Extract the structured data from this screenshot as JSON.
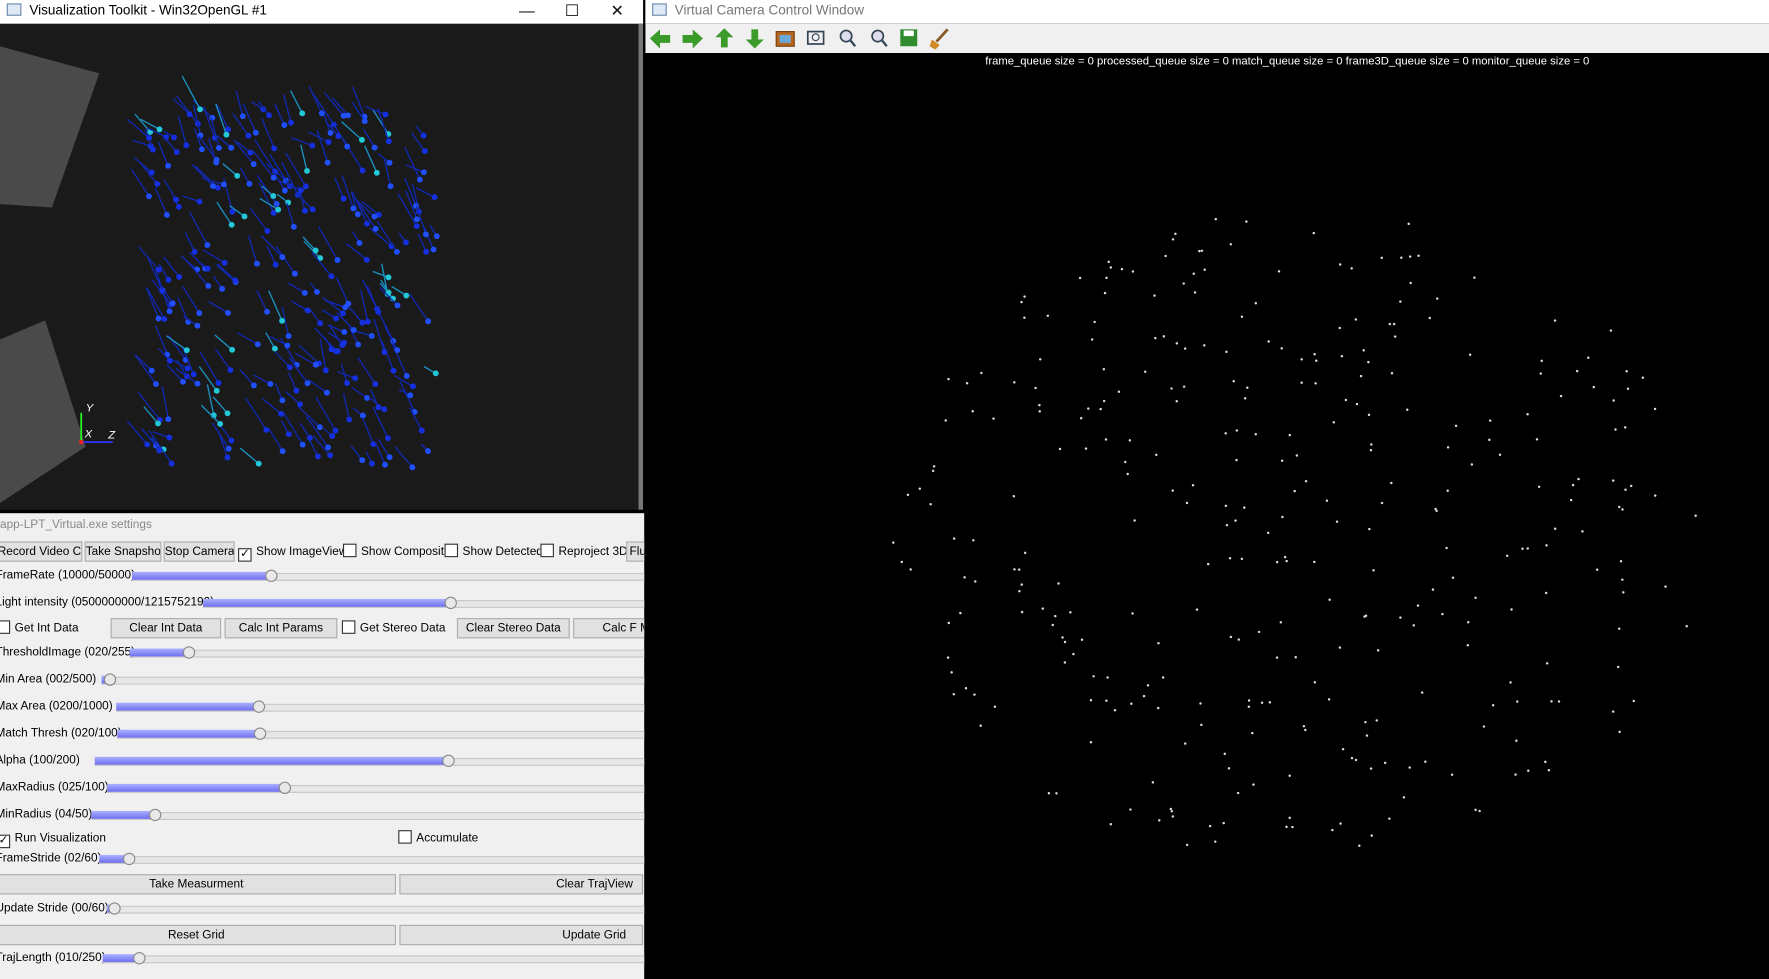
{
  "vtk_window": {
    "title": "Visualization Toolkit - Win32OpenGL #1",
    "axis_labels": [
      "Y",
      "X",
      "Z"
    ]
  },
  "settings": {
    "title": "app-LPT_Virtual.exe settings",
    "buttons": [
      "Record Video Clip",
      "Take Snapshot",
      "Stop Cameras",
      "Clear Int Data",
      "Calc Int Params",
      "Clear Stereo Data",
      "Calc F Ma",
      "Take Measurment",
      "Clear TrajView",
      "Reset Grid",
      "Update Grid",
      "Flus"
    ],
    "checkboxes": [
      {
        "label": "Show ImageView",
        "checked": true
      },
      {
        "label": "Show Composite",
        "checked": false
      },
      {
        "label": "Show Detected",
        "checked": false
      },
      {
        "label": "Reproject 3D",
        "checked": false
      },
      {
        "label": "Get Int Data",
        "checked": false
      },
      {
        "label": "Get Stereo Data",
        "checked": false
      },
      {
        "label": "Run Visualization",
        "checked": true
      },
      {
        "label": "Accumulate",
        "checked": false
      }
    ],
    "sliders": [
      "FrameRate  (10000/50000)",
      "Light intensity (0500000000/1215752192)",
      "ThresholdImage (020/255)",
      "Min Area  (002/500)",
      "Max Area  (0200/1000)",
      "Match Thresh (020/100)",
      "Alpha     (100/200)",
      "MaxRadius  (025/100)",
      "MinRadius  (04/50)",
      "FrameStride (02/60)",
      "Update Stride (00/60)",
      "TrajLength (010/250)"
    ]
  },
  "camera_window": {
    "title": "Virtual Camera Control Window",
    "status": "frame_queue size = 0  processed_queue size = 0  match_queue size = 0  frame3D_queue size = 0  monitor_queue size = 0"
  }
}
